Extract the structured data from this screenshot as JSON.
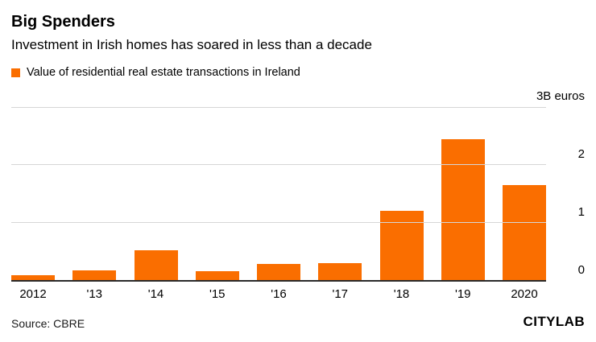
{
  "header": {
    "title": "Big Spenders",
    "subtitle": "Investment in Irish homes has soared in less than a decade"
  },
  "legend": {
    "label": "Value of residential real estate transactions in Ireland",
    "swatch_color": "#fa6e00"
  },
  "chart_data": {
    "type": "bar",
    "title": "Big Spenders",
    "subtitle": "Investment in Irish homes has soared in less than a decade",
    "series_name": "Value of residential real estate transactions in Ireland",
    "categories": [
      "2012",
      "'13",
      "'14",
      "'15",
      "'16",
      "'17",
      "'18",
      "'19",
      "2020"
    ],
    "values": [
      0.08,
      0.17,
      0.52,
      0.16,
      0.28,
      0.3,
      1.2,
      2.45,
      1.65
    ],
    "unit": "B euros",
    "ylim": [
      0,
      3
    ],
    "yticks": [
      {
        "value": 3,
        "label": "3B euros"
      },
      {
        "value": 2,
        "label": "2"
      },
      {
        "value": 1,
        "label": "1"
      },
      {
        "value": 0,
        "label": "0"
      }
    ],
    "bar_color": "#fa6e00",
    "grid": true,
    "legend_position": "top-left"
  },
  "footer": {
    "source": "Source: CBRE",
    "logo": "CITYLAB"
  }
}
